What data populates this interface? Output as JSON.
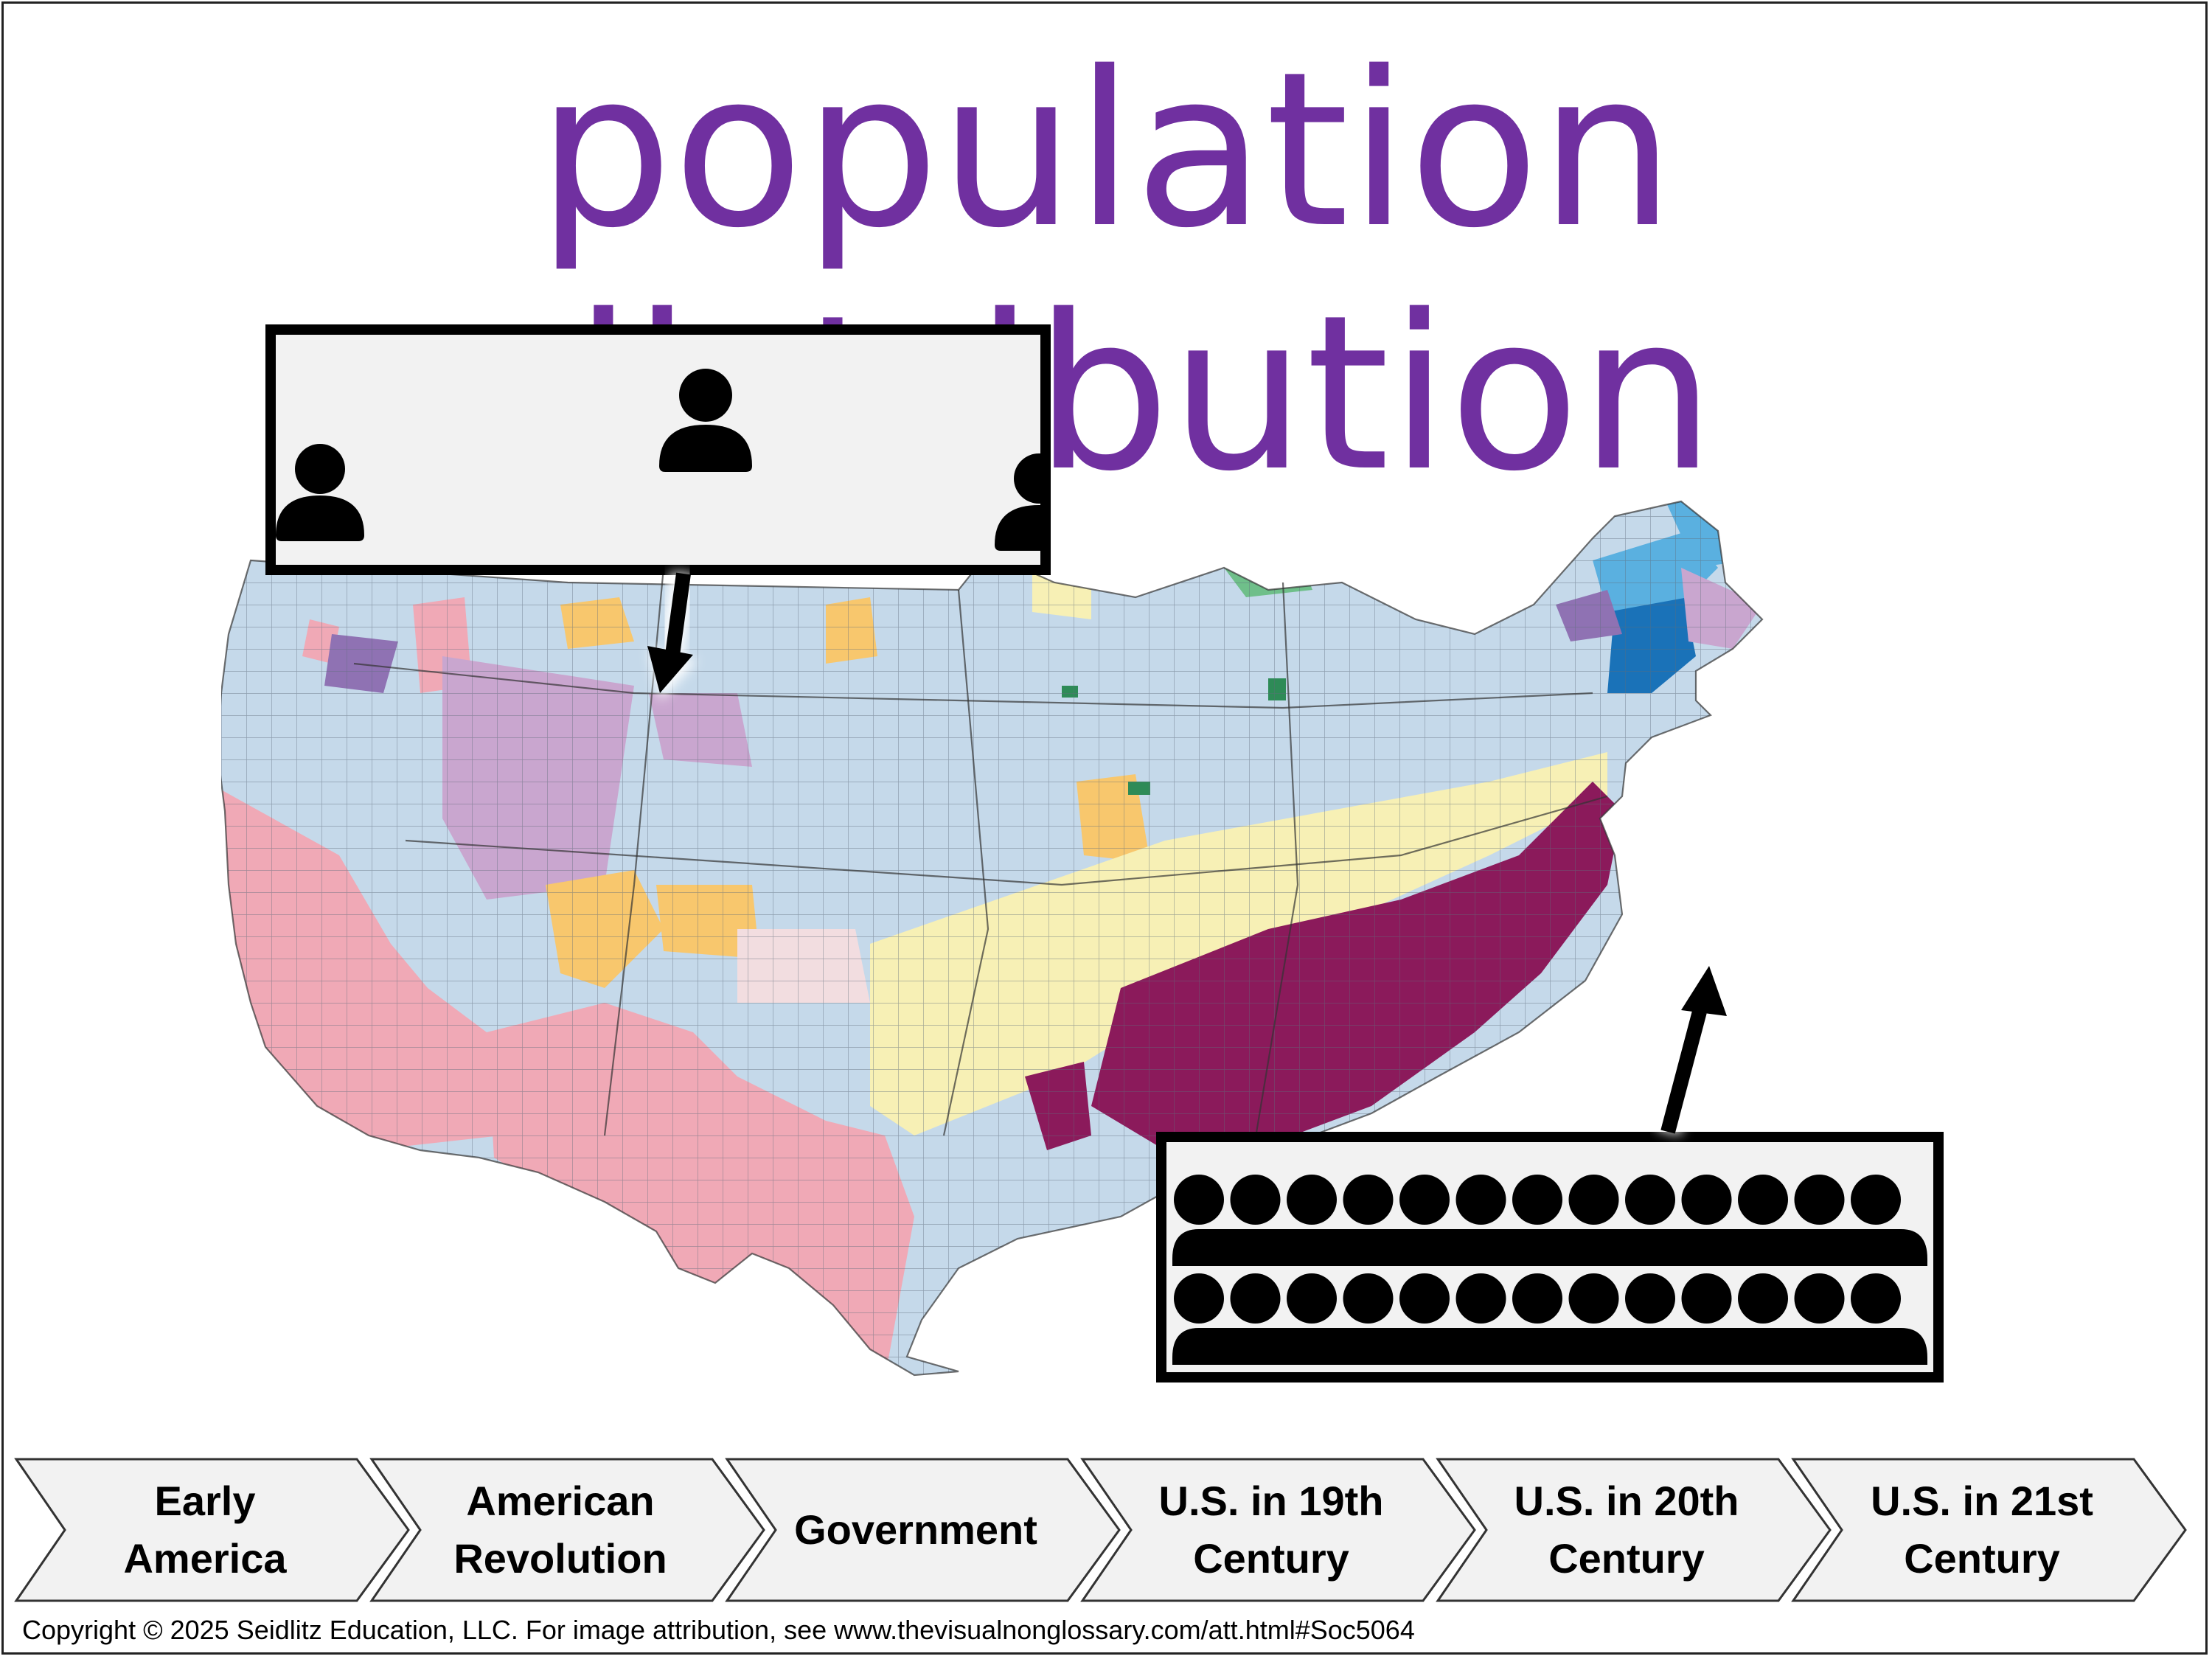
{
  "title": "population distribution",
  "callouts": {
    "sparse": {
      "icon": "person-icon",
      "people_count": 3
    },
    "dense": {
      "icon": "crowd-icon",
      "rows": 2,
      "per_row": 13
    }
  },
  "map": {
    "icon": "us-county-population-map",
    "colors": {
      "light_blue": "#c5d9ea",
      "pink": "#f0a9b6",
      "lavender": "#c9a6cf",
      "purple": "#8f72b3",
      "pale_yellow": "#f7f0b5",
      "orange": "#f8c76d",
      "magenta": "#8b1a5b",
      "blue": "#1a72b8",
      "sky_blue": "#5ab0e0",
      "green": "#2e8b57",
      "pale_pink": "#f2dde0"
    }
  },
  "nav": {
    "items": [
      {
        "label": "Early\nAmerica"
      },
      {
        "label": "American\nRevolution"
      },
      {
        "label": "Government"
      },
      {
        "label": "U.S. in 19th\nCentury"
      },
      {
        "label": "U.S. in 20th\nCentury"
      },
      {
        "label": "U.S. in 21st\nCentury"
      }
    ]
  },
  "copyright": "Copyright © 2025 Seidlitz Education, LLC.  For image attribution, see www.thevisualnonglossary.com/att.html#Soc5064",
  "colors": {
    "title": "#7030A0",
    "nav_fill": "#f2f2f2",
    "nav_stroke": "#333333",
    "callout_border": "#000000"
  }
}
